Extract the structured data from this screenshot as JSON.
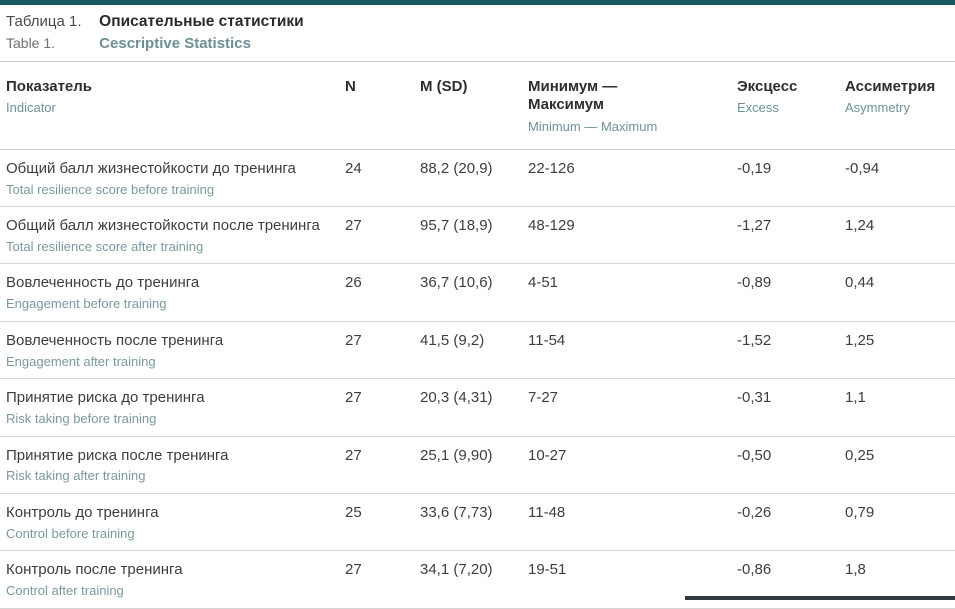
{
  "caption": {
    "label_ru": "Таблица 1.",
    "title_ru": "Описательные статистики",
    "label_en": "Table 1.",
    "title_en": "Cescriptive Statistics"
  },
  "table": {
    "columns": {
      "indicator": {
        "ru": "Показатель",
        "en": "Indicator"
      },
      "n": {
        "ru": "N"
      },
      "msd": {
        "ru": "M (SD)"
      },
      "minmax": {
        "ru": "Минимум — Максимум",
        "en": "Minimum — Maximum"
      },
      "excess": {
        "ru": "Эксцесс",
        "en": "Excess"
      },
      "asymmetry": {
        "ru": "Ассиметрия",
        "en": "Asymmetry"
      }
    },
    "rows": [
      {
        "indicator_ru": "Общий балл жизнестойкости до тренинга",
        "indicator_en": "Total resilience score before training",
        "n": "24",
        "msd": "88,2 (20,9)",
        "minmax": "22-126",
        "excess": "-0,19",
        "asymmetry": "-0,94"
      },
      {
        "indicator_ru": "Общий балл жизнестойкости после тренинга",
        "indicator_en": "Total resilience score after training",
        "n": "27",
        "msd": "95,7 (18,9)",
        "minmax": "48-129",
        "excess": "-1,27",
        "asymmetry": "1,24"
      },
      {
        "indicator_ru": "Вовлеченность до тренинга",
        "indicator_en": "Engagement before training",
        "n": "26",
        "msd": "36,7 (10,6)",
        "minmax": "4-51",
        "excess": "-0,89",
        "asymmetry": "0,44"
      },
      {
        "indicator_ru": "Вовлеченность после тренинга",
        "indicator_en": "Engagement after training",
        "n": "27",
        "msd": "41,5 (9,2)",
        "minmax": "11-54",
        "excess": "-1,52",
        "asymmetry": "1,25"
      },
      {
        "indicator_ru": "Принятие риска до тренинга",
        "indicator_en": "Risk taking before training",
        "n": "27",
        "msd": "20,3 (4,31)",
        "minmax": "7-27",
        "excess": "-0,31",
        "asymmetry": "1,1"
      },
      {
        "indicator_ru": "Принятие риска после тренинга",
        "indicator_en": "Risk taking after training",
        "n": "27",
        "msd": "25,1 (9,90)",
        "minmax": "10-27",
        "excess": "-0,50",
        "asymmetry": "0,25"
      },
      {
        "indicator_ru": "Контроль до тренинга",
        "indicator_en": "Control before training",
        "n": "25",
        "msd": "33,6 (7,73)",
        "minmax": "11-48",
        "excess": "-0,26",
        "asymmetry": "0,79"
      },
      {
        "indicator_ru": "Контроль после тренинга",
        "indicator_en": "Control after training",
        "n": "27",
        "msd": "34,1 (7,20)",
        "minmax": "19-51",
        "excess": "-0,86",
        "asymmetry": "1,8"
      }
    ]
  },
  "colors": {
    "accent_teal": "#1b5862",
    "subtitle_teal": "#6e929a",
    "text_dark": "#3e3e3e",
    "row_divider": "#d6d6d6",
    "bottom_bar": "#313a3c"
  }
}
